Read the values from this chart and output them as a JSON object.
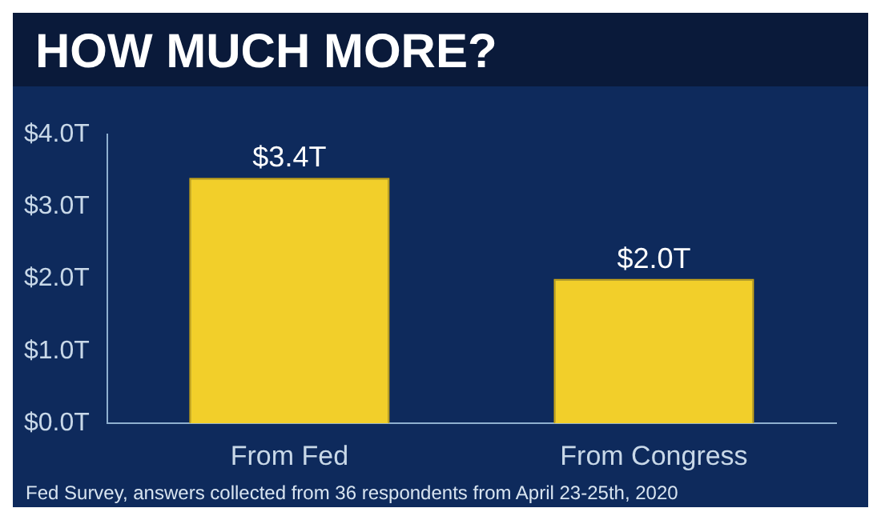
{
  "chart_data": {
    "type": "bar",
    "title": "HOW MUCH MORE?",
    "categories": [
      "From Fed",
      "From Congress"
    ],
    "values": [
      3.4,
      2.0
    ],
    "value_labels": [
      "$3.4T",
      "$2.0T"
    ],
    "color": "#f2cf2a",
    "ylim": [
      0,
      4
    ],
    "yticks": [
      {
        "value": 0,
        "label": "$0.0T"
      },
      {
        "value": 1,
        "label": "$1.0T"
      },
      {
        "value": 2,
        "label": "$2.0T"
      },
      {
        "value": 3,
        "label": "$3.0T"
      },
      {
        "value": 4,
        "label": "$4.0T"
      }
    ],
    "annotations": [
      "Fed Survey, answers collected from 36 respondents from April 23-25th, 2020"
    ]
  }
}
